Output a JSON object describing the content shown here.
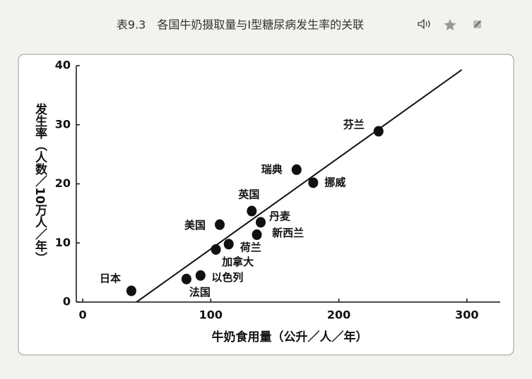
{
  "chart_data": {
    "type": "scatter",
    "title": "表9.3　各国牛奶摄取量与Ⅰ型糖尿病发生率的关联",
    "x_label": "牛奶食用量（公升／人／年）",
    "y_label": "发生率（人数／10万人／年）",
    "point_labels": [
      "日本",
      "法国",
      "以色列",
      "加拿大",
      "荷兰",
      "美国",
      "新西兰",
      "丹麦",
      "英国",
      "瑞典",
      "挪威",
      "芬兰"
    ],
    "x": [
      38,
      81,
      92,
      104,
      114,
      107,
      136,
      139,
      132,
      167,
      180,
      231
    ],
    "values": [
      1.9,
      3.9,
      4.5,
      8.9,
      9.8,
      13.1,
      11.4,
      13.5,
      15.4,
      22.4,
      20.2,
      28.9
    ],
    "color": "#111111",
    "trendline": {
      "x": [
        42,
        296
      ],
      "y": [
        0,
        39.3
      ]
    },
    "xlim": [
      -5,
      326
    ],
    "ylim": [
      0,
      40
    ],
    "xticks": [
      0,
      100,
      200,
      300
    ],
    "yticks": [
      0,
      10,
      20,
      30,
      40
    ]
  }
}
